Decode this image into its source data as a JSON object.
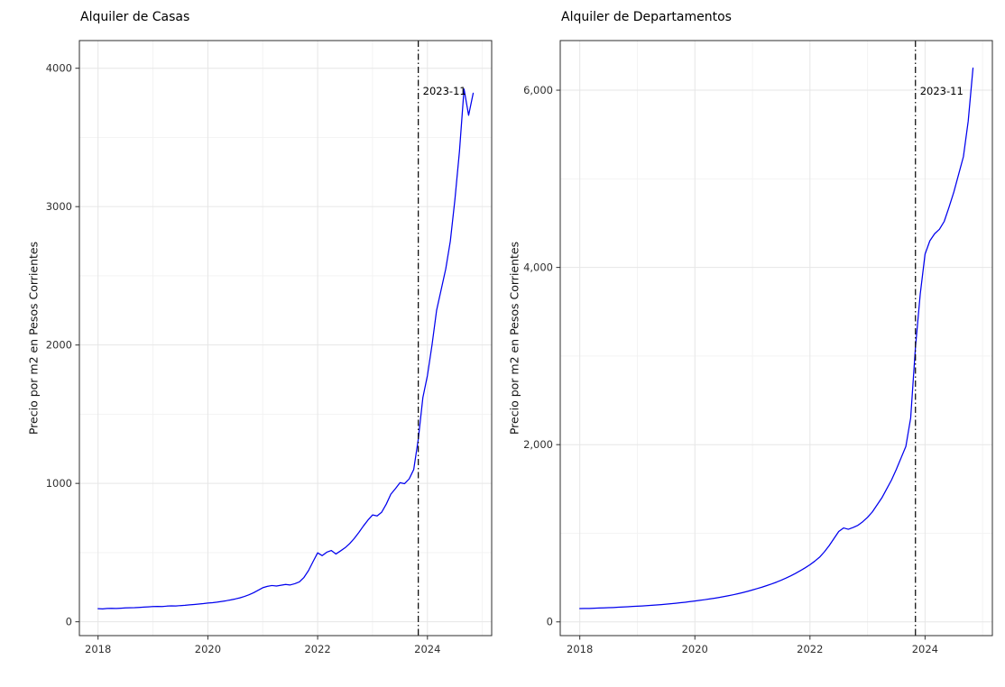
{
  "chart_data": [
    {
      "type": "line",
      "title": "Alquiler de Casas",
      "ylabel": "Precio por m2 en Pesos Corrientes",
      "xlabel": "",
      "legend": "none",
      "grid": true,
      "line_color": "#0000EE",
      "x_start": 2018.0,
      "x_interval": 0.0833333,
      "x_unit": "monthly (decimal years), 2018-01 to 2024-11",
      "values": [
        95,
        93,
        96,
        97,
        96,
        98,
        100,
        101,
        102,
        104,
        106,
        108,
        110,
        111,
        110,
        113,
        115,
        114,
        117,
        119,
        122,
        125,
        128,
        131,
        135,
        138,
        142,
        147,
        152,
        158,
        165,
        173,
        183,
        195,
        210,
        228,
        246,
        256,
        262,
        258,
        264,
        270,
        266,
        275,
        288,
        320,
        370,
        435,
        498,
        478,
        503,
        515,
        490,
        512,
        535,
        565,
        602,
        645,
        692,
        735,
        772,
        765,
        792,
        850,
        922,
        962,
        1005,
        998,
        1032,
        1100,
        1320,
        1620,
        1780,
        2000,
        2250,
        2400,
        2550,
        2750,
        3050,
        3400,
        3850,
        3660,
        3820
      ],
      "xlim": [
        2017.66,
        2025.17
      ],
      "ylim": [
        -100,
        4200
      ],
      "x_ticks": [
        2018,
        2020,
        2022,
        2024
      ],
      "x_tick_labels": [
        "2018",
        "2020",
        "2022",
        "2024"
      ],
      "x_minor_ticks": [
        2019,
        2021,
        2023,
        2025
      ],
      "y_ticks": [
        0,
        1000,
        2000,
        3000,
        4000
      ],
      "y_tick_labels": [
        "0",
        "1000",
        "2000",
        "3000",
        "4000"
      ],
      "y_minor_ticks": [
        500,
        1500,
        2500,
        3500
      ],
      "vline": {
        "x": 2023.8333,
        "label": "2023-11",
        "style": "dash-dot",
        "color": "#000000"
      }
    },
    {
      "type": "line",
      "title": "Alquiler de Departamentos",
      "ylabel": "Precio por m2 en Pesos Corrientes",
      "xlabel": "",
      "legend": "none",
      "grid": true,
      "line_color": "#0000EE",
      "x_start": 2018.0,
      "x_interval": 0.0833333,
      "x_unit": "monthly (decimal years), 2018-01 to 2024-11",
      "values": [
        150,
        152,
        151,
        154,
        156,
        158,
        160,
        162,
        165,
        168,
        171,
        174,
        177,
        180,
        183,
        187,
        191,
        195,
        200,
        205,
        210,
        216,
        222,
        229,
        236,
        243,
        250,
        258,
        266,
        275,
        285,
        295,
        306,
        318,
        331,
        345,
        360,
        376,
        392,
        410,
        428,
        448,
        470,
        494,
        520,
        548,
        578,
        610,
        645,
        685,
        730,
        790,
        860,
        940,
        1020,
        1060,
        1045,
        1065,
        1090,
        1130,
        1180,
        1240,
        1320,
        1400,
        1500,
        1600,
        1720,
        1850,
        1980,
        2300,
        3100,
        3700,
        4150,
        4300,
        4380,
        4430,
        4520,
        4680,
        4850,
        5050,
        5250,
        5650,
        6250
      ],
      "xlim": [
        2017.66,
        2025.17
      ],
      "ylim": [
        -155,
        6560
      ],
      "x_ticks": [
        2018,
        2020,
        2022,
        2024
      ],
      "x_tick_labels": [
        "2018",
        "2020",
        "2022",
        "2024"
      ],
      "x_minor_ticks": [
        2019,
        2021,
        2023,
        2025
      ],
      "y_ticks": [
        0,
        2000,
        4000,
        6000
      ],
      "y_tick_labels": [
        "0",
        "2,000",
        "4,000",
        "6,000"
      ],
      "y_minor_ticks": [
        1000,
        3000,
        5000
      ],
      "vline": {
        "x": 2023.8333,
        "label": "2023-11",
        "style": "dash-dot",
        "color": "#000000"
      }
    }
  ],
  "style": {
    "panel_border": "#2e2e2e",
    "grid_major": "#e6e6e6",
    "grid_minor": "#f2f2f2",
    "tick_color": "#2e2e2e",
    "tick_label_color": "#303030"
  }
}
